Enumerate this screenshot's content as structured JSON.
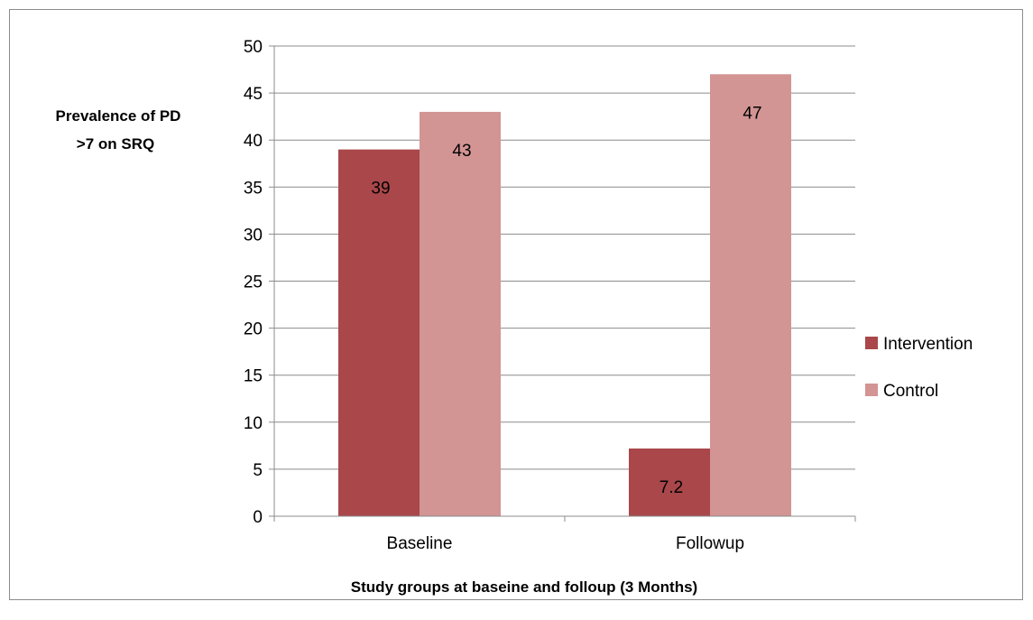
{
  "chart_data": {
    "type": "bar",
    "categories": [
      "Baseline",
      "Followup"
    ],
    "series": [
      {
        "name": "Intervention",
        "values": [
          39,
          7.2
        ],
        "color": "#a9474a"
      },
      {
        "name": "Control",
        "values": [
          43,
          47
        ],
        "color": "#d39494"
      }
    ],
    "data_labels": [
      [
        "39",
        "7.2"
      ],
      [
        "43",
        "47"
      ]
    ],
    "xlabel": "Study groups at baseine and folloup (3 Months)",
    "ylabel_lines": [
      "Prevalence of PD",
      ">7 on SRQ"
    ],
    "ylim": [
      0,
      50
    ],
    "y_ticks": [
      0,
      5,
      10,
      15,
      20,
      25,
      30,
      35,
      40,
      45,
      50
    ],
    "grid": true,
    "legend_position": "right",
    "gridline_color": "#8c8c8c"
  }
}
